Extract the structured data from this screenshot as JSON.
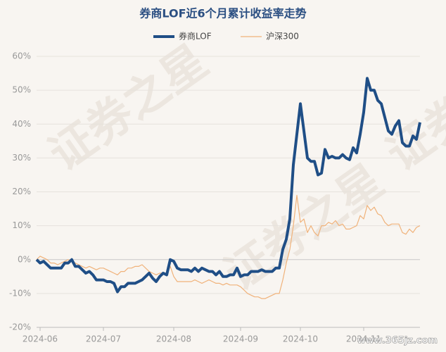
{
  "chart_data": {
    "type": "line",
    "title": "券商LOF近6个月累计收益率走势",
    "watermarks": [
      "证券之星",
      "www.365jz.com"
    ],
    "categories": [
      null,
      "2024-06",
      null,
      null,
      null,
      null,
      null,
      null,
      null,
      null,
      null,
      null,
      null,
      null,
      null,
      null,
      null,
      null,
      null,
      "2024-07",
      null,
      null,
      null,
      null,
      null,
      null,
      null,
      null,
      null,
      null,
      null,
      null,
      null,
      null,
      null,
      null,
      null,
      null,
      null,
      "2024-08",
      null,
      null,
      null,
      null,
      null,
      null,
      null,
      null,
      null,
      null,
      null,
      null,
      null,
      null,
      null,
      null,
      null,
      null,
      "2024-09",
      null,
      null,
      null,
      null,
      null,
      null,
      null,
      null,
      null,
      null,
      null,
      null,
      null,
      null,
      null,
      null,
      "2024-10",
      null,
      null,
      null,
      null,
      null,
      null,
      null,
      null,
      null,
      null,
      null,
      null,
      null,
      null,
      null,
      null,
      null,
      "2024-11",
      null,
      null,
      null,
      null,
      null,
      null,
      null,
      null,
      null,
      null,
      null,
      null,
      null,
      null,
      null,
      null
    ],
    "series": [
      {
        "name": "券商LOF",
        "color": "#1f4e86",
        "width": 4,
        "values": [
          0,
          -1,
          -0.5,
          -1.5,
          -2.5,
          -2.5,
          -2.5,
          -2.5,
          -1,
          -1,
          0,
          -2,
          -2,
          -3,
          -4,
          -3.5,
          -4.5,
          -6,
          -6,
          -6,
          -6.5,
          -6.5,
          -7,
          -9.5,
          -8,
          -8,
          -7,
          -7,
          -7,
          -6.5,
          -6,
          -5,
          -4,
          -5.5,
          -6.5,
          -5,
          -4,
          -4.5,
          0,
          -0.5,
          -2.5,
          -3,
          -3,
          -3,
          -3.5,
          -2.5,
          -3.5,
          -2.5,
          -3,
          -3.5,
          -3.5,
          -4.5,
          -3.5,
          -5,
          -5,
          -4.5,
          -4.5,
          -2.5,
          -5,
          -4.5,
          -4.5,
          -3.5,
          -3.5,
          -3.5,
          -3,
          -3.5,
          -3.5,
          -3.5,
          -2.5,
          -2.5,
          3,
          6,
          12,
          28,
          37,
          46,
          38,
          30,
          29,
          29,
          25,
          25.5,
          32.5,
          30,
          30.5,
          30,
          30,
          31,
          30,
          29.5,
          33,
          31.5,
          37,
          43.5,
          53.5,
          50,
          50,
          47,
          46,
          42,
          38,
          37,
          39.5,
          41,
          34.5,
          33.5,
          33.5,
          36.5,
          35.5,
          40.5
        ]
      },
      {
        "name": "沪深300",
        "color": "#f0b27a",
        "width": 1.2,
        "values": [
          0,
          1,
          0.5,
          0,
          -1,
          -1,
          -1.5,
          -1,
          -0.5,
          0,
          -0.5,
          -1,
          -1.5,
          -2,
          -2.5,
          -2,
          -2.5,
          -3,
          -2.5,
          -2.5,
          -3,
          -3.5,
          -4,
          -4.5,
          -3.5,
          -3.5,
          -2.5,
          -2.5,
          -2,
          -2,
          -1.5,
          -2.5,
          -3.5,
          -4,
          -4.5,
          -4,
          -4,
          -4.5,
          -2,
          -5,
          -6.5,
          -6.5,
          -6.5,
          -6.5,
          -6.5,
          -6,
          -6.5,
          -7,
          -6.5,
          -6,
          -6.5,
          -7,
          -7,
          -7.5,
          -7,
          -7.5,
          -7.5,
          -7.5,
          -8,
          -9,
          -10,
          -10.5,
          -11,
          -11,
          -11.5,
          -11.5,
          -11,
          -10.5,
          -10,
          -10,
          -6,
          -1,
          3,
          10,
          19,
          11,
          12,
          8,
          10,
          8,
          7,
          10,
          10,
          11,
          10.5,
          11.5,
          10,
          10.5,
          9,
          9,
          9.5,
          10,
          13,
          12,
          16,
          14.5,
          15.5,
          13.5,
          13,
          11,
          10,
          10.5,
          10.5,
          10.5,
          8,
          7.5,
          9,
          8,
          9.5,
          10
        ]
      }
    ],
    "ylim": [
      -20,
      60
    ],
    "yticks": [
      {
        "value": -20,
        "label": "-20%"
      },
      {
        "value": -10,
        "label": "-10%"
      },
      {
        "value": 0,
        "label": "0%"
      },
      {
        "value": 10,
        "label": "10%"
      },
      {
        "value": 20,
        "label": "20%"
      },
      {
        "value": 30,
        "label": "30%"
      },
      {
        "value": 40,
        "label": "40%"
      },
      {
        "value": 50,
        "label": "50%"
      },
      {
        "value": 60,
        "label": "60%"
      }
    ],
    "grid": true
  }
}
